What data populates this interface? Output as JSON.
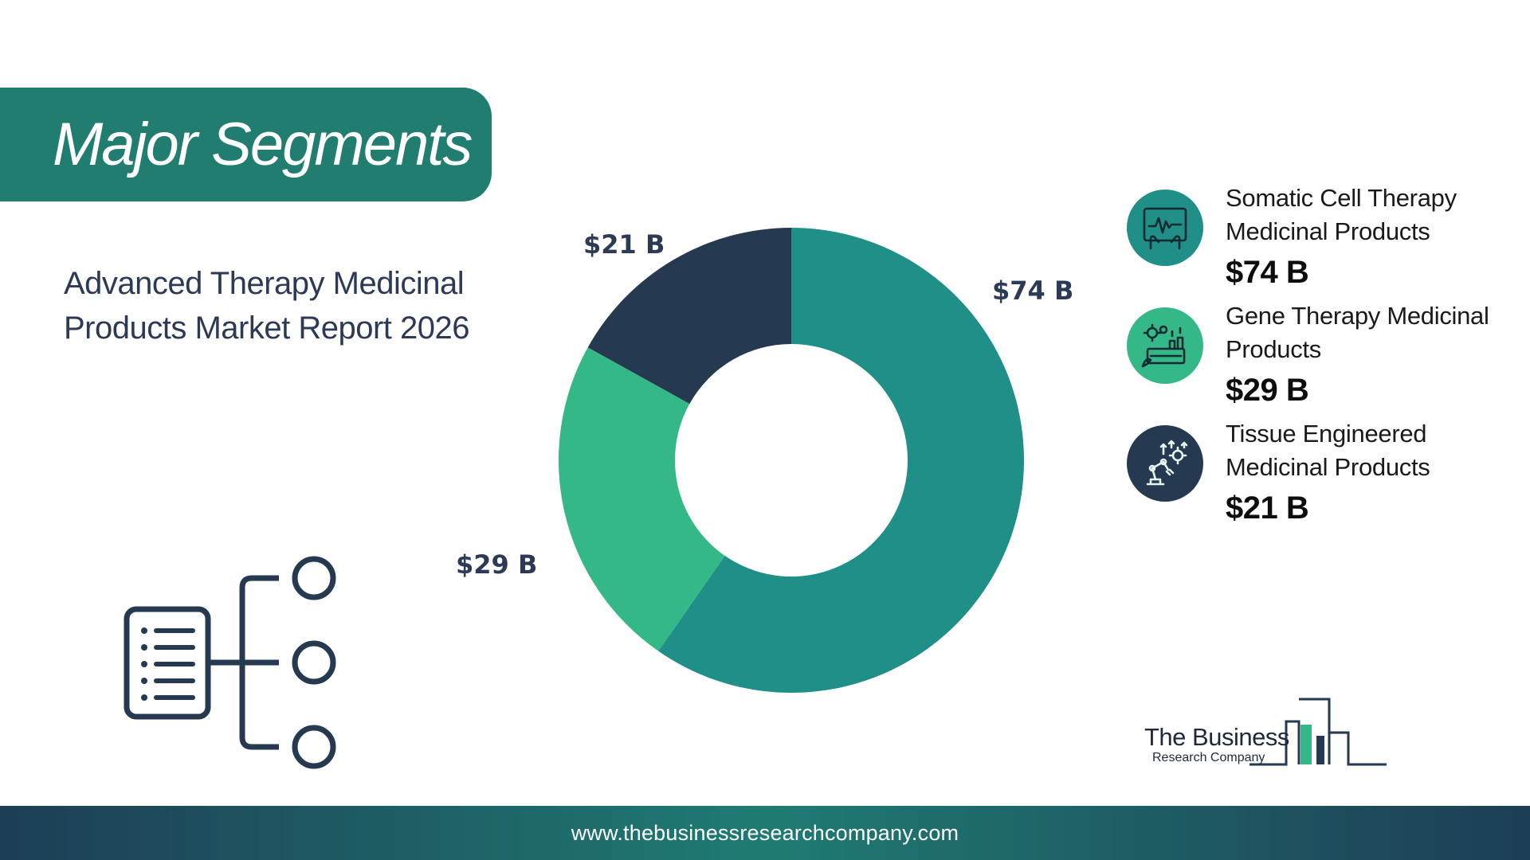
{
  "banner": {
    "title": "Major Segments"
  },
  "report_title": "Advanced Therapy Medicinal Products Market Report 2026",
  "colors": {
    "banner": "#207d6f",
    "slice_1": "#1f8f87",
    "slice_2": "#35b888",
    "slice_3": "#253a50",
    "label": "#2c3a55"
  },
  "chart_data": {
    "type": "pie",
    "donut": true,
    "categories": [
      "Somatic Cell Therapy Medicinal Products",
      "Gene Therapy Medicinal Products",
      "Tissue Engineered Medicinal Products"
    ],
    "values": [
      74,
      29,
      21
    ],
    "unit": "$ B",
    "data_labels": [
      "$74 B",
      "$29 B",
      "$21 B"
    ]
  },
  "legend": [
    {
      "name": "Somatic Cell Therapy Medicinal Products",
      "value": "$74 B",
      "icon": "tablet-heartbeat-icon",
      "color": "#1f8f87"
    },
    {
      "name": "Gene Therapy Medicinal Products",
      "value": "$29 B",
      "icon": "factory-gears-icon",
      "color": "#35b888"
    },
    {
      "name": "Tissue Engineered Medicinal Products",
      "value": "$21 B",
      "icon": "robotic-arm-icon",
      "color": "#253a50"
    }
  ],
  "logo": {
    "line1": "The Business",
    "line2": "Research Company"
  },
  "footer": {
    "url": "www.thebusinessresearchcompany.com"
  }
}
